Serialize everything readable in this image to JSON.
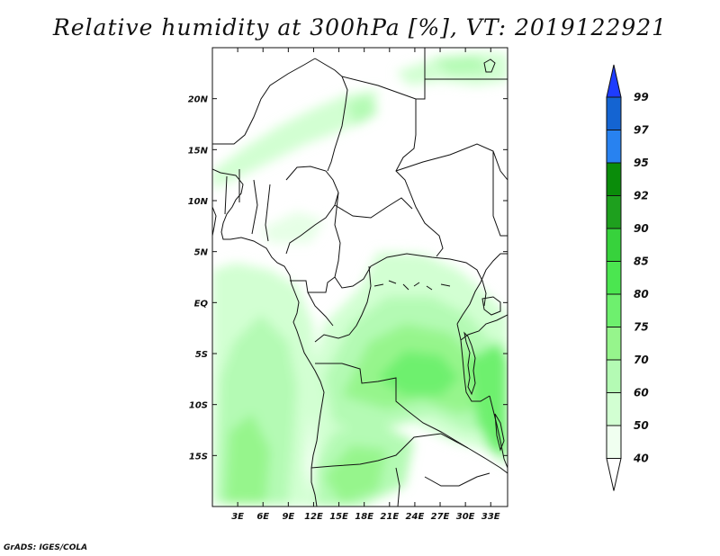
{
  "title": "Relative humidity at 300hPa [%], VT: 2019122921",
  "credit": "GrADS: IGES/COLA",
  "map": {
    "lon_range": [
      0,
      35
    ],
    "lat_range": [
      -20,
      25
    ],
    "x_ticks": [
      "3E",
      "6E",
      "9E",
      "12E",
      "15E",
      "18E",
      "21E",
      "24E",
      "27E",
      "30E",
      "33E"
    ],
    "x_tick_values": [
      3,
      6,
      9,
      12,
      15,
      18,
      21,
      24,
      27,
      30,
      33
    ],
    "y_ticks": [
      "20N",
      "15N",
      "10N",
      "5N",
      "EQ",
      "5S",
      "10S",
      "15S"
    ],
    "y_tick_values": [
      20,
      15,
      10,
      5,
      0,
      -5,
      -10,
      -15
    ]
  },
  "colorbar": {
    "labels": [
      "99",
      "97",
      "95",
      "92",
      "90",
      "85",
      "80",
      "75",
      "70",
      "60",
      "50",
      "40"
    ],
    "colors": [
      "#1e3cff",
      "#1464d2",
      "#2882f0",
      "#0a8c0a",
      "#1ea01e",
      "#37d23c",
      "#4be650",
      "#6ef06e",
      "#96f58c",
      "#b4fab4",
      "#d2ffd2",
      "#f0fff0"
    ]
  }
}
